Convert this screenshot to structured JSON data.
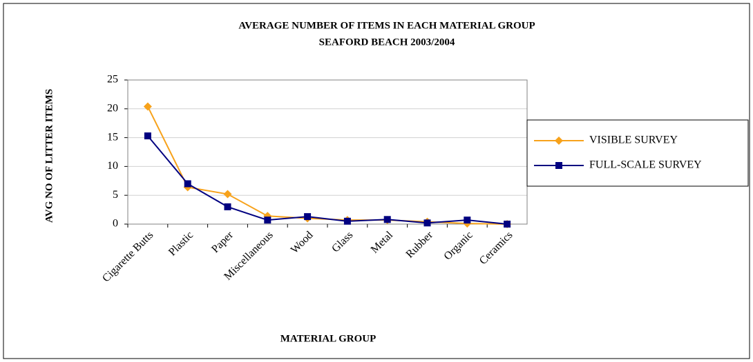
{
  "chart_data": {
    "type": "line",
    "title": "AVERAGE NUMBER OF ITEMS IN EACH MATERIAL GROUP",
    "subtitle": "SEAFORD BEACH 2003/2004",
    "x_label": "MATERIAL GROUP",
    "y_label": "AVG NO OF LITTER ITEMS",
    "categories": [
      "Cigarette Butts",
      "Plastic",
      "Paper",
      "Miscellaneous",
      "Wood",
      "Glass",
      "Metal",
      "Rubber",
      "Organic",
      "Ceramics"
    ],
    "series": [
      {
        "name": "VISIBLE SURVEY",
        "color": "#f7a21b",
        "marker": "diamond",
        "values": [
          20.4,
          6.4,
          5.2,
          1.4,
          1.0,
          0.7,
          0.7,
          0.4,
          0.1,
          0.0
        ]
      },
      {
        "name": "FULL-SCALE SURVEY",
        "color": "#000080",
        "marker": "square",
        "values": [
          15.3,
          7.0,
          3.0,
          0.7,
          1.3,
          0.5,
          0.8,
          0.2,
          0.7,
          0.0
        ]
      }
    ],
    "ylim": [
      0,
      25
    ],
    "yticks": [
      0,
      5,
      10,
      15,
      20,
      25
    ],
    "grid": true,
    "legend": "right"
  }
}
